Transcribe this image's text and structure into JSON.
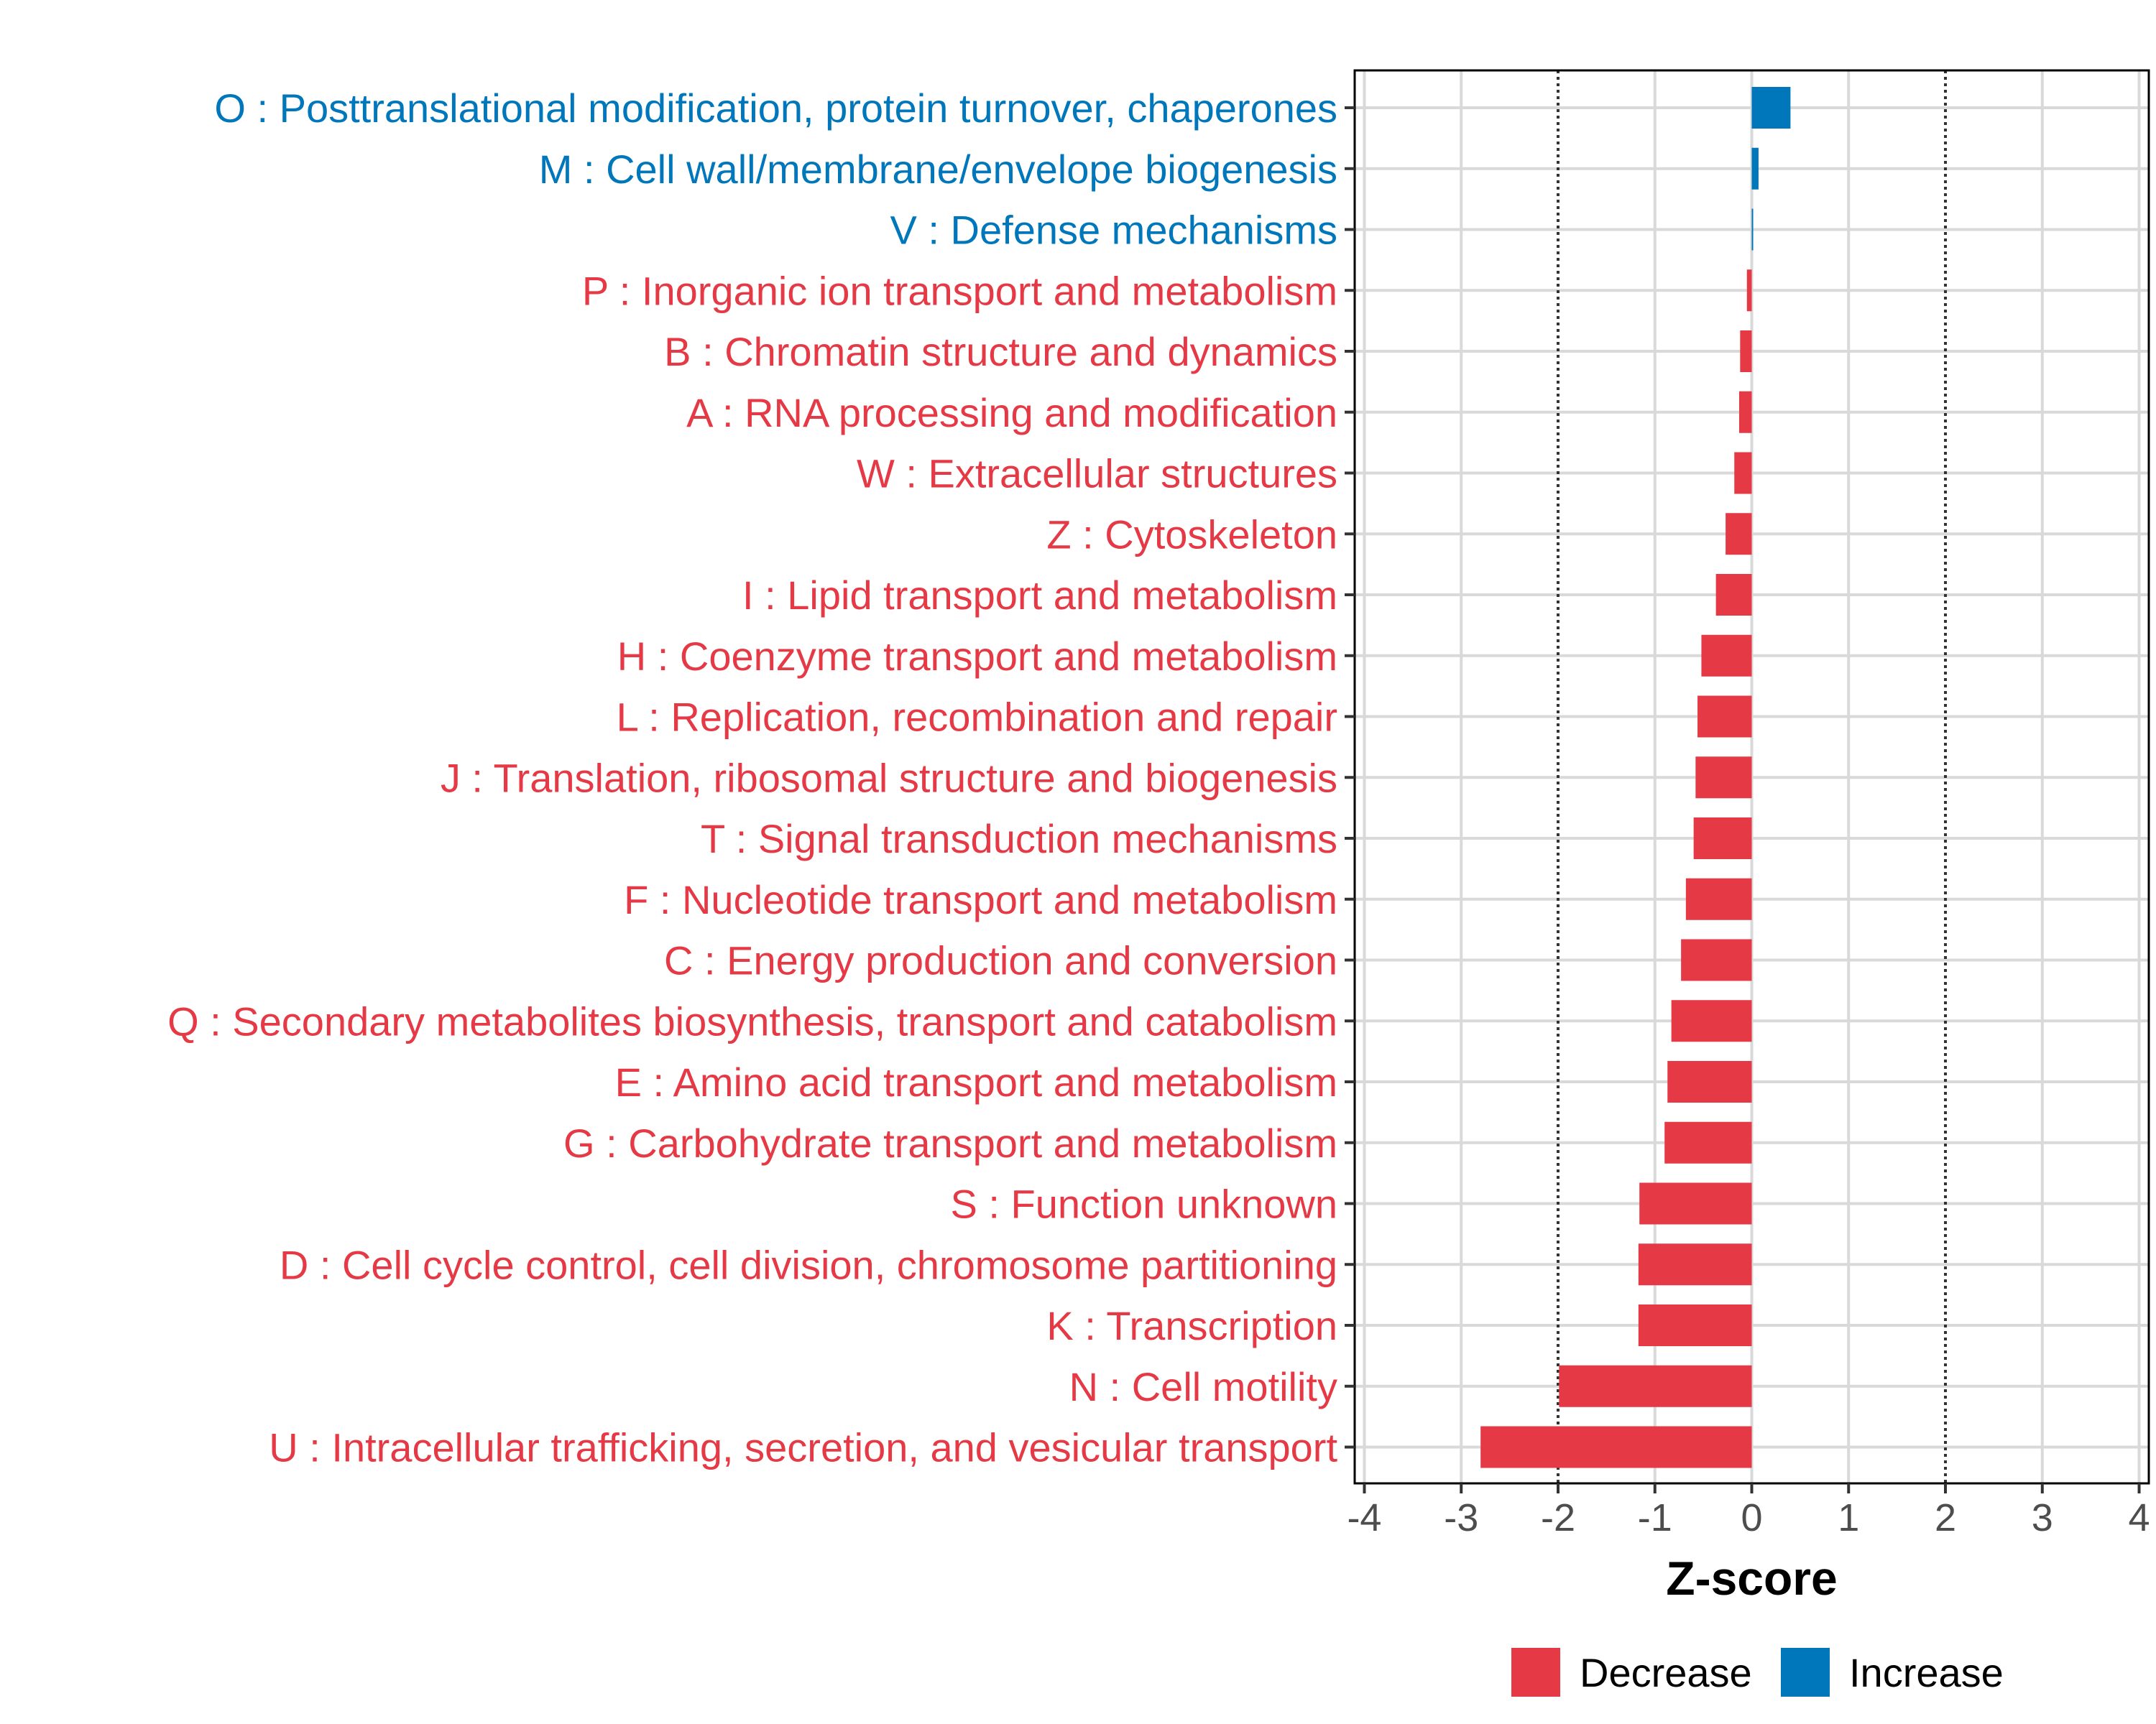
{
  "chart_data": {
    "type": "bar",
    "orientation": "horizontal",
    "xlabel": "Z-score",
    "xlim": [
      -4.1,
      4.1
    ],
    "xticks": [
      -4,
      -3,
      -2,
      -1,
      0,
      1,
      2,
      3,
      4
    ],
    "xtick_labels": [
      "-4",
      "-3",
      "-2",
      "-1",
      "0",
      "1",
      "2",
      "3",
      "4"
    ],
    "reference_lines": [
      -2,
      2
    ],
    "grid": true,
    "legend_position": "bottom",
    "colors": {
      "Decrease": "#e63946",
      "Increase": "#0077bb",
      "grid": "#d9d9d9",
      "axis": "#000000",
      "reference_line": "#333333"
    },
    "categories": [
      "O : Posttranslational modification, protein turnover, chaperones",
      "M : Cell wall/membrane/envelope biogenesis",
      "V : Defense mechanisms",
      "P : Inorganic ion transport and metabolism",
      "B : Chromatin structure and dynamics",
      "A : RNA processing and modification",
      "W : Extracellular structures",
      "Z : Cytoskeleton",
      "I : Lipid transport and metabolism",
      "H : Coenzyme transport and metabolism",
      "L : Replication, recombination and repair",
      "J : Translation, ribosomal structure and biogenesis",
      "T : Signal transduction mechanisms",
      "F : Nucleotide transport and metabolism",
      "C : Energy production and conversion",
      "Q : Secondary metabolites biosynthesis, transport and catabolism",
      "E : Amino acid transport and metabolism",
      "G : Carbohydrate transport and metabolism",
      "S : Function unknown",
      "D : Cell cycle control, cell division, chromosome partitioning",
      "K : Transcription",
      "N : Cell motility",
      "U : Intracellular trafficking, secretion, and vesicular transport"
    ],
    "values": [
      0.4,
      0.07,
      0.01,
      -0.05,
      -0.12,
      -0.13,
      -0.18,
      -0.27,
      -0.37,
      -0.52,
      -0.56,
      -0.58,
      -0.6,
      -0.68,
      -0.73,
      -0.83,
      -0.87,
      -0.9,
      -1.16,
      -1.17,
      -1.17,
      -1.99,
      -2.8
    ],
    "direction": [
      "Increase",
      "Increase",
      "Increase",
      "Decrease",
      "Decrease",
      "Decrease",
      "Decrease",
      "Decrease",
      "Decrease",
      "Decrease",
      "Decrease",
      "Decrease",
      "Decrease",
      "Decrease",
      "Decrease",
      "Decrease",
      "Decrease",
      "Decrease",
      "Decrease",
      "Decrease",
      "Decrease",
      "Decrease",
      "Decrease"
    ],
    "legend": [
      "Decrease",
      "Increase"
    ]
  }
}
